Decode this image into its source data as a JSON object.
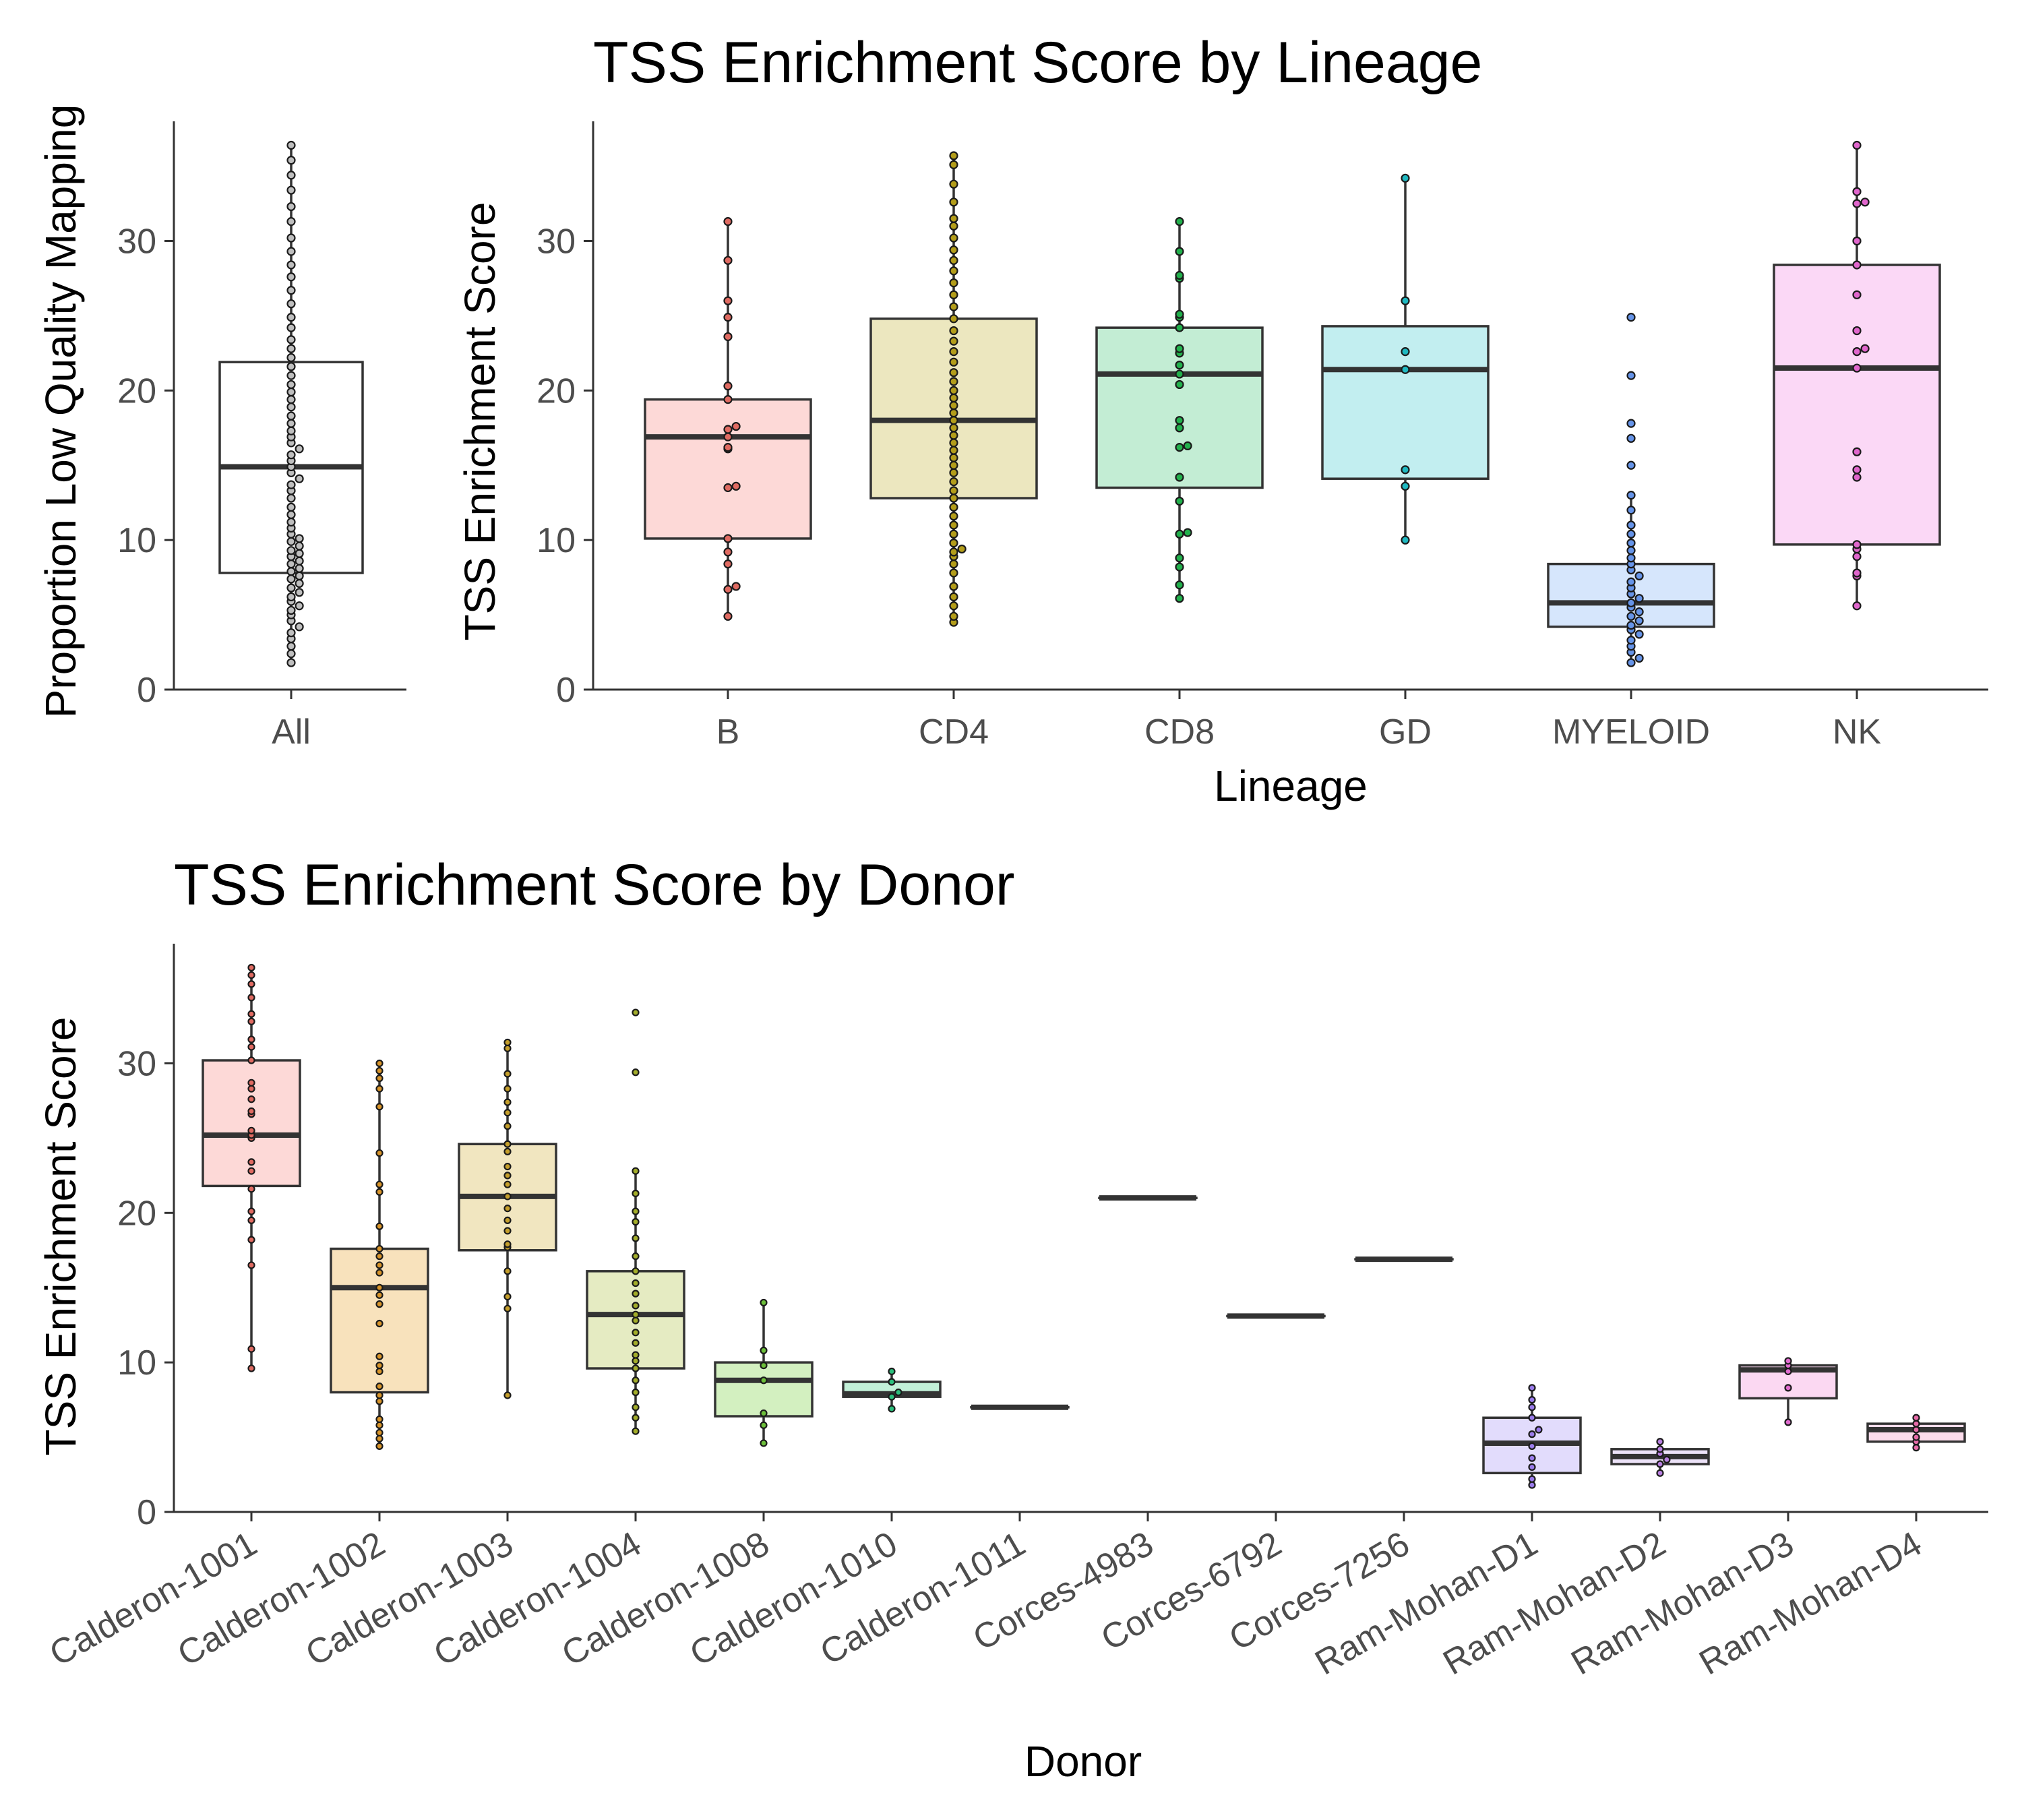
{
  "chart_data": [
    {
      "id": "all",
      "type": "box",
      "title": "",
      "xlabel": "",
      "ylabel": "Proportion Low Quality Mapping",
      "ylim": [
        0,
        38
      ],
      "yticks": [
        0,
        10,
        20,
        30
      ],
      "categories": [
        "All"
      ],
      "fills": [
        "#ffffff"
      ],
      "dotColors": [
        "#bfbfbf"
      ],
      "boxes": [
        {
          "category": "All",
          "q1": 7.8,
          "median": 14.9,
          "q3": 21.9,
          "lower": 1.8,
          "upper": 36.4,
          "points": [
            1.8,
            2.4,
            2.9,
            3.4,
            3.8,
            4.2,
            4.6,
            5.0,
            5.3,
            5.6,
            5.9,
            6.2,
            6.5,
            6.8,
            7.1,
            7.4,
            7.6,
            7.9,
            8.1,
            8.4,
            8.6,
            8.9,
            9.1,
            9.3,
            9.6,
            9.9,
            10.1,
            10.4,
            10.8,
            11.2,
            11.7,
            12.2,
            12.8,
            13.3,
            13.7,
            14.1,
            14.5,
            14.9,
            15.3,
            15.7,
            16.1,
            16.5,
            16.9,
            17.3,
            17.8,
            18.3,
            18.9,
            19.4,
            19.9,
            20.4,
            21.0,
            21.6,
            22.2,
            22.8,
            23.4,
            24.2,
            24.9,
            25.8,
            26.7,
            27.6,
            28.4,
            29.3,
            30.2,
            31.3,
            32.3,
            33.4,
            34.4,
            35.4,
            36.4
          ]
        }
      ]
    },
    {
      "id": "lineage",
      "type": "box",
      "title": "TSS Enrichment Score by Lineage",
      "xlabel": "Lineage",
      "ylabel": "TSS Enrichment Score",
      "ylim": [
        0,
        38
      ],
      "yticks": [
        0,
        10,
        20,
        30
      ],
      "categories": [
        "B",
        "CD4",
        "CD8",
        "GD",
        "MYELOID",
        "NK"
      ],
      "fills": [
        "#fdd9d7",
        "#ece7bf",
        "#c3edd4",
        "#c2eef0",
        "#d6e6fc",
        "#fbd8f6"
      ],
      "dotColors": [
        "#e06b62",
        "#b39d1a",
        "#22b04c",
        "#1fb9c1",
        "#6694e8",
        "#e066cc"
      ],
      "boxes": [
        {
          "category": "B",
          "q1": 10.1,
          "median": 16.9,
          "q3": 19.4,
          "lower": 4.9,
          "upper": 31.3,
          "points": [
            4.9,
            6.7,
            6.9,
            8.4,
            9.2,
            10.1,
            13.5,
            13.6,
            16.1,
            16.2,
            16.9,
            17.4,
            17.6,
            19.4,
            20.3,
            23.6,
            24.9,
            26.0,
            28.7,
            31.3
          ]
        },
        {
          "category": "CD4",
          "q1": 12.8,
          "median": 18.0,
          "q3": 24.8,
          "lower": 4.5,
          "upper": 35.7,
          "points": [
            4.5,
            4.9,
            5.6,
            6.2,
            6.9,
            7.8,
            8.4,
            8.9,
            9.2,
            9.4,
            9.8,
            10.4,
            11.0,
            11.6,
            12.2,
            12.8,
            13.3,
            13.9,
            14.5,
            15.0,
            15.5,
            16.0,
            16.5,
            17.0,
            17.5,
            18.0,
            18.5,
            19.0,
            19.5,
            20.0,
            20.6,
            21.2,
            21.9,
            22.6,
            23.3,
            24.0,
            24.8,
            25.6,
            26.4,
            27.2,
            28.0,
            28.7,
            29.4,
            30.2,
            31.0,
            31.5,
            32.6,
            33.8,
            35.1,
            35.7
          ]
        },
        {
          "category": "CD8",
          "q1": 13.5,
          "median": 21.1,
          "q3": 24.2,
          "lower": 6.1,
          "upper": 31.3,
          "points": [
            6.1,
            7.0,
            8.2,
            8.8,
            10.4,
            10.5,
            12.6,
            14.2,
            16.2,
            16.3,
            17.5,
            18.0,
            20.4,
            21.1,
            21.7,
            22.5,
            22.8,
            24.2,
            24.9,
            25.1,
            27.5,
            27.7,
            29.3,
            31.3
          ]
        },
        {
          "category": "GD",
          "q1": 14.1,
          "median": 21.4,
          "q3": 24.3,
          "lower": 10.0,
          "upper": 34.2,
          "points": [
            10.0,
            13.6,
            14.7,
            21.4,
            22.6,
            26.0,
            34.2
          ]
        },
        {
          "category": "MYELOID",
          "q1": 4.2,
          "median": 5.8,
          "q3": 8.4,
          "lower": 1.8,
          "upper": 13.0,
          "points": [
            1.8,
            2.1,
            2.5,
            2.9,
            3.3,
            3.7,
            4.0,
            4.3,
            4.6,
            4.9,
            5.2,
            5.5,
            5.8,
            6.1,
            6.4,
            6.8,
            7.2,
            7.6,
            8.0,
            8.4,
            8.8,
            9.3,
            9.8,
            10.4,
            11.0,
            12.0,
            13.0,
            15.0,
            16.8,
            17.8,
            21.0,
            24.9
          ]
        },
        {
          "category": "NK",
          "q1": 9.7,
          "median": 21.5,
          "q3": 28.4,
          "lower": 5.6,
          "upper": 36.4,
          "points": [
            5.6,
            7.6,
            7.8,
            8.9,
            9.4,
            9.7,
            14.2,
            14.7,
            15.9,
            21.5,
            22.6,
            22.8,
            24.0,
            26.4,
            28.4,
            30.0,
            32.5,
            32.6,
            33.3,
            36.4
          ]
        }
      ]
    },
    {
      "id": "donor",
      "type": "box",
      "title": "TSS Enrichment Score by Donor",
      "xlabel": "Donor",
      "ylabel": "TSS Enrichment Score",
      "ylim": [
        0,
        38
      ],
      "yticks": [
        0,
        10,
        20,
        30
      ],
      "categories": [
        "Calderon-1001",
        "Calderon-1002",
        "Calderon-1003",
        "Calderon-1004",
        "Calderon-1008",
        "Calderon-1010",
        "Calderon-1011",
        "Corces-4983",
        "Corces-6792",
        "Corces-7256",
        "Ram-Mohan-D1",
        "Ram-Mohan-D2",
        "Ram-Mohan-D3",
        "Ram-Mohan-D4"
      ],
      "fills": [
        "#fdd9d7",
        "#f8e2bc",
        "#f1e6c0",
        "#e5ebc2",
        "#d3f0c0",
        "#c2f0d8",
        "#c8eee6",
        "#c8eef2",
        "#c8e4f6",
        "#c8dcf8",
        "#e2dcfc",
        "#ece2f8",
        "#fbd8f2",
        "#fcdceb"
      ],
      "dotColors": [
        "#e06b62",
        "#d9952a",
        "#c59f2c",
        "#a3ad2a",
        "#6cbf3a",
        "#2cbf7c",
        "#2cbfa3",
        "#2cb9c9",
        "#3aa6e0",
        "#5a8fe8",
        "#9a7bea",
        "#b87fe0",
        "#e06bcf",
        "#e66ba8"
      ],
      "boxes": [
        {
          "category": "Calderon-1001",
          "q1": 21.8,
          "median": 25.2,
          "q3": 30.2,
          "lower": 9.6,
          "upper": 36.4,
          "points": [
            9.6,
            10.9,
            16.5,
            18.2,
            19.5,
            20.1,
            21.6,
            22.8,
            23.4,
            25.0,
            25.2,
            25.5,
            26.6,
            26.8,
            27.6,
            28.3,
            28.7,
            30.2,
            31.1,
            31.6,
            32.8,
            33.3,
            34.4,
            35.3,
            35.9,
            36.4
          ]
        },
        {
          "category": "Calderon-1002",
          "q1": 8.0,
          "median": 15.0,
          "q3": 17.6,
          "lower": 4.4,
          "upper": 30.0,
          "points": [
            4.4,
            4.9,
            5.3,
            5.8,
            6.2,
            7.4,
            7.8,
            8.4,
            9.4,
            9.8,
            10.4,
            12.6,
            13.9,
            14.5,
            15.0,
            16.0,
            16.5,
            17.1,
            17.6,
            19.1,
            21.4,
            21.9,
            24.0,
            27.1,
            28.3,
            29.0,
            29.5,
            30.0
          ]
        },
        {
          "category": "Calderon-1003",
          "q1": 17.5,
          "median": 21.1,
          "q3": 24.6,
          "lower": 7.8,
          "upper": 31.4,
          "points": [
            7.8,
            13.6,
            14.4,
            16.1,
            17.7,
            17.9,
            18.8,
            19.5,
            20.3,
            21.1,
            21.9,
            22.5,
            23.1,
            24.1,
            24.6,
            25.8,
            26.7,
            27.4,
            28.3,
            29.3,
            31.0,
            31.4
          ]
        },
        {
          "category": "Calderon-1004",
          "q1": 9.6,
          "median": 13.2,
          "q3": 16.1,
          "lower": 5.4,
          "upper": 22.8,
          "points": [
            5.4,
            6.3,
            7.0,
            8.0,
            8.8,
            9.6,
            10.1,
            10.5,
            11.3,
            12.0,
            12.8,
            13.2,
            13.8,
            14.6,
            15.3,
            16.1,
            17.1,
            18.3,
            19.4,
            20.1,
            21.3,
            22.8,
            29.4,
            33.4
          ]
        },
        {
          "category": "Calderon-1008",
          "q1": 6.4,
          "median": 8.8,
          "q3": 10.0,
          "lower": 4.6,
          "upper": 14.0,
          "points": [
            4.6,
            5.8,
            6.6,
            8.8,
            9.8,
            10.8,
            14.0
          ]
        },
        {
          "category": "Calderon-1010",
          "q1": 7.7,
          "median": 7.9,
          "q3": 8.7,
          "lower": 6.9,
          "upper": 9.4,
          "points": [
            6.9,
            7.7,
            8.0,
            8.7,
            9.4
          ]
        },
        {
          "category": "Calderon-1011",
          "q1": 7.0,
          "median": 7.0,
          "q3": 7.0,
          "lower": 7.0,
          "upper": 7.0,
          "points": []
        },
        {
          "category": "Corces-4983",
          "q1": 21.0,
          "median": 21.0,
          "q3": 21.0,
          "lower": 21.0,
          "upper": 21.0,
          "points": []
        },
        {
          "category": "Corces-6792",
          "q1": 13.1,
          "median": 13.1,
          "q3": 13.1,
          "lower": 13.1,
          "upper": 13.1,
          "points": []
        },
        {
          "category": "Corces-7256",
          "q1": 16.9,
          "median": 16.9,
          "q3": 16.9,
          "lower": 16.9,
          "upper": 16.9,
          "points": []
        },
        {
          "category": "Ram-Mohan-D1",
          "q1": 2.6,
          "median": 4.6,
          "q3": 6.3,
          "lower": 1.8,
          "upper": 8.3,
          "points": [
            1.8,
            2.2,
            3.0,
            3.6,
            4.4,
            5.2,
            5.5,
            6.3,
            7.0,
            7.5,
            8.3
          ]
        },
        {
          "category": "Ram-Mohan-D2",
          "q1": 3.2,
          "median": 3.7,
          "q3": 4.2,
          "lower": 2.6,
          "upper": 4.7,
          "points": [
            2.6,
            3.2,
            3.5,
            3.9,
            4.2,
            4.7
          ]
        },
        {
          "category": "Ram-Mohan-D3",
          "q1": 7.6,
          "median": 9.5,
          "q3": 9.8,
          "lower": 6.0,
          "upper": 10.1,
          "points": [
            6.0,
            8.3,
            9.4,
            9.8,
            10.1
          ]
        },
        {
          "category": "Ram-Mohan-D4",
          "q1": 4.7,
          "median": 5.5,
          "q3": 5.9,
          "lower": 4.3,
          "upper": 6.3,
          "points": [
            4.3,
            4.7,
            5.0,
            5.5,
            5.9,
            6.3
          ]
        }
      ]
    }
  ]
}
